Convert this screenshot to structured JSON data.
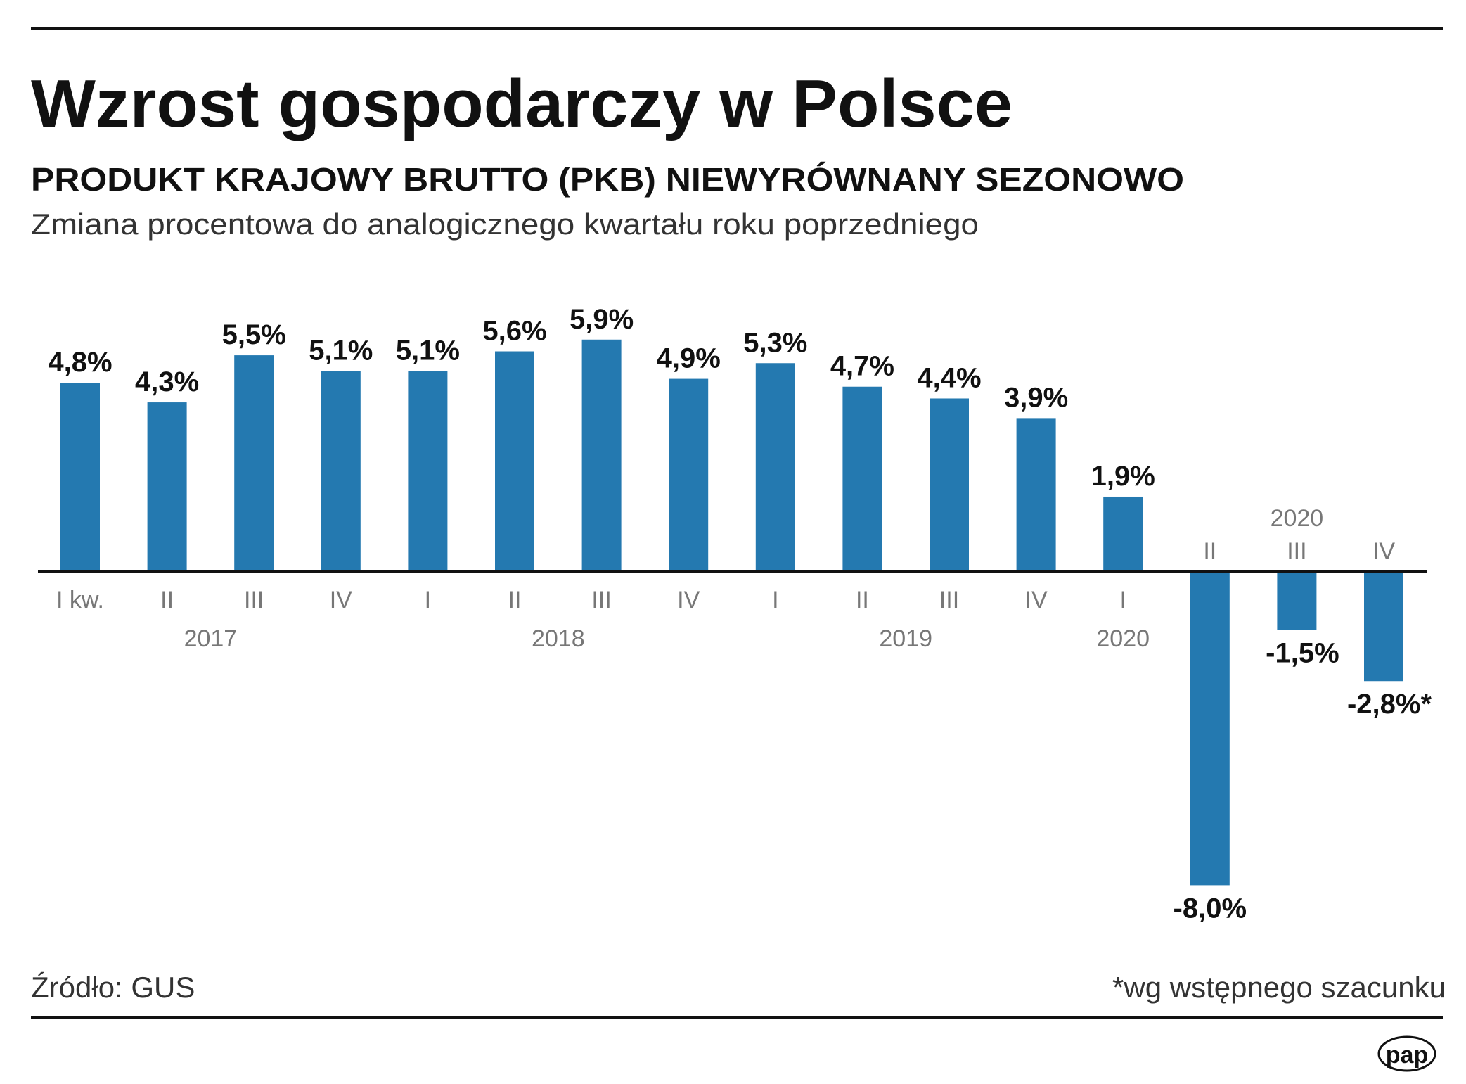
{
  "chart_data": {
    "type": "bar",
    "title": "Wzrost gospodarczy w Polsce",
    "subtitle": "PRODUKT KRAJOWY BRUTTO (PKB) NIEWYRÓWNANY SEZONOWO",
    "description": "Zmiana procentowa do analogicznego kwartału roku poprzedniego",
    "categories": [
      "I kw.",
      "II",
      "III",
      "IV",
      "I",
      "II",
      "III",
      "IV",
      "I",
      "II",
      "III",
      "IV",
      "I",
      "II",
      "III",
      "IV"
    ],
    "years": [
      {
        "label": "2017",
        "first": 0,
        "last": 3,
        "position": "below"
      },
      {
        "label": "2018",
        "first": 4,
        "last": 7,
        "position": "below"
      },
      {
        "label": "2019",
        "first": 8,
        "last": 11,
        "position": "below"
      },
      {
        "label": "2020",
        "first": 12,
        "last": 12,
        "position": "below"
      },
      {
        "label": "2020",
        "first": 13,
        "last": 15,
        "position": "above"
      }
    ],
    "values": [
      4.8,
      4.3,
      5.5,
      5.1,
      5.1,
      5.6,
      5.9,
      4.9,
      5.3,
      4.7,
      4.4,
      3.9,
      1.9,
      -8.0,
      -1.5,
      -2.8
    ],
    "value_labels": [
      "4,8%",
      "4,3%",
      "5,5%",
      "5,1%",
      "5,1%",
      "5,6%",
      "5,9%",
      "4,9%",
      "5,3%",
      "4,7%",
      "4,4%",
      "3,9%",
      "1,9%",
      "-8,0%",
      "-1,5%",
      "-2,8%*"
    ],
    "ylim": [
      -8.0,
      5.9
    ],
    "grid": false,
    "bar_color": "#2479b0"
  },
  "footer": {
    "source": "Źródło: GUS",
    "note": "*wg wstępnego szacunku",
    "logo": "pap"
  }
}
